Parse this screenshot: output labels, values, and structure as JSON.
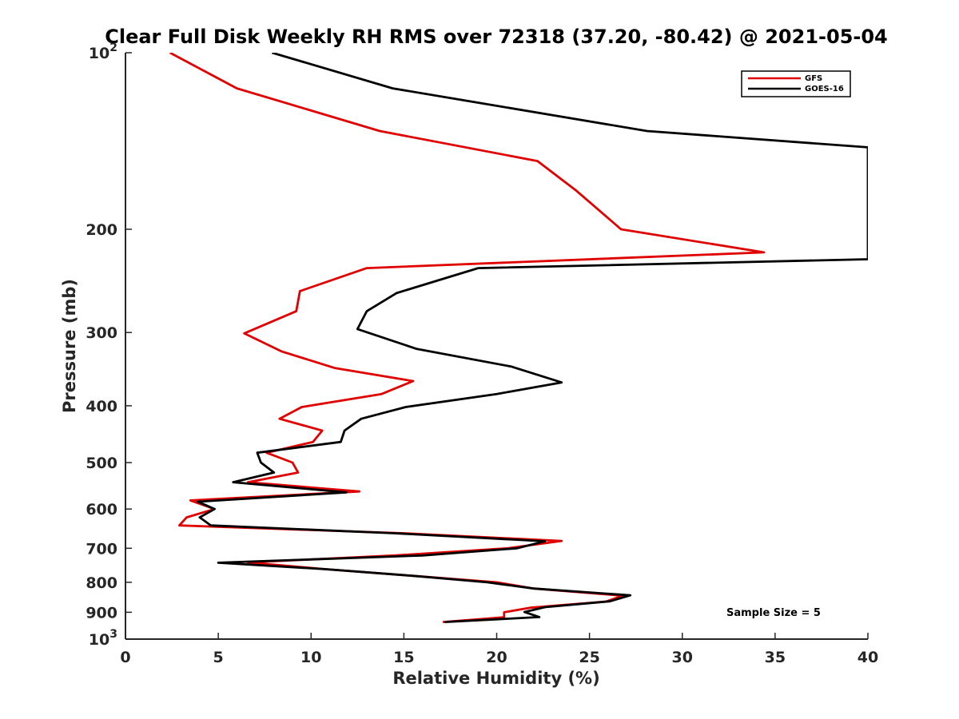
{
  "chart_data": {
    "type": "line",
    "title": "Clear Full Disk Weekly RH RMS over 72318 (37.20, -80.42) @ 2021-05-04",
    "xlabel": "Relative Humidity (%)",
    "ylabel": "Pressure (mb)",
    "xlim": [
      0,
      40
    ],
    "ylim": [
      100,
      1000
    ],
    "y_scale": "log",
    "y_reversed": true,
    "grid": false,
    "legend_position": "top-right",
    "x_ticks": [
      "0",
      "5",
      "10",
      "15",
      "20",
      "25",
      "30",
      "35",
      "40"
    ],
    "y_ticks": [
      {
        "value": 100,
        "base": "10",
        "exp": "2"
      },
      {
        "value": 200,
        "label": "200"
      },
      {
        "value": 300,
        "label": "300"
      },
      {
        "value": 400,
        "label": "400"
      },
      {
        "value": 500,
        "label": "500"
      },
      {
        "value": 600,
        "label": "600"
      },
      {
        "value": 700,
        "label": "700"
      },
      {
        "value": 800,
        "label": "800"
      },
      {
        "value": 900,
        "label": "900"
      },
      {
        "value": 1000,
        "base": "10",
        "exp": "3"
      }
    ],
    "annotation": "Sample Size = 5",
    "series": [
      {
        "name": "GFS",
        "color": "#e00000",
        "points": [
          [
            2.4,
            100
          ],
          [
            6.0,
            115
          ],
          [
            13.7,
            136
          ],
          [
            22.2,
            153
          ],
          [
            24.3,
            172
          ],
          [
            26.7,
            200
          ],
          [
            34.4,
            219
          ],
          [
            13.0,
            233
          ],
          [
            9.4,
            255
          ],
          [
            9.2,
            276
          ],
          [
            6.4,
            301
          ],
          [
            8.4,
            323
          ],
          [
            11.3,
            345
          ],
          [
            15.5,
            363
          ],
          [
            13.8,
            382
          ],
          [
            9.5,
            402
          ],
          [
            8.3,
            421
          ],
          [
            10.6,
            441
          ],
          [
            10.1,
            461
          ],
          [
            7.6,
            481
          ],
          [
            9.0,
            500
          ],
          [
            9.3,
            520
          ],
          [
            6.6,
            540
          ],
          [
            12.6,
            560
          ],
          [
            3.5,
            580
          ],
          [
            4.8,
            600
          ],
          [
            3.3,
            620
          ],
          [
            2.9,
            640
          ],
          [
            15.0,
            660
          ],
          [
            23.5,
            680
          ],
          [
            20.6,
            700
          ],
          [
            14.5,
            720
          ],
          [
            6.6,
            740
          ],
          [
            10.8,
            760
          ],
          [
            15.5,
            780
          ],
          [
            20.0,
            800
          ],
          [
            22.0,
            820
          ],
          [
            26.8,
            843
          ],
          [
            25.9,
            863
          ],
          [
            21.8,
            884
          ],
          [
            20.4,
            900
          ],
          [
            20.4,
            918
          ],
          [
            17.1,
            935
          ]
        ]
      },
      {
        "name": "GOES-16",
        "color": "#000000",
        "points": [
          [
            7.9,
            100
          ],
          [
            14.4,
            115
          ],
          [
            28.1,
            136
          ],
          [
            40.0,
            145
          ],
          [
            40.0,
            225
          ],
          [
            19.0,
            233
          ],
          [
            14.6,
            257
          ],
          [
            13.0,
            276
          ],
          [
            12.5,
            296
          ],
          [
            15.7,
            320
          ],
          [
            20.8,
            343
          ],
          [
            23.5,
            365
          ],
          [
            20.0,
            382
          ],
          [
            15.1,
            402
          ],
          [
            12.7,
            421
          ],
          [
            11.8,
            441
          ],
          [
            11.6,
            461
          ],
          [
            7.1,
            481
          ],
          [
            7.3,
            500
          ],
          [
            8.0,
            520
          ],
          [
            5.8,
            540
          ],
          [
            11.9,
            562
          ],
          [
            3.9,
            583
          ],
          [
            4.8,
            600
          ],
          [
            4.0,
            620
          ],
          [
            4.6,
            640
          ],
          [
            14.5,
            660
          ],
          [
            22.6,
            681
          ],
          [
            21.1,
            700
          ],
          [
            16.0,
            720
          ],
          [
            5.0,
            741
          ],
          [
            10.8,
            760
          ],
          [
            15.5,
            780
          ],
          [
            19.5,
            800
          ],
          [
            22.0,
            820
          ],
          [
            27.2,
            842
          ],
          [
            26.1,
            862
          ],
          [
            22.6,
            882
          ],
          [
            21.5,
            899
          ],
          [
            22.3,
            917
          ],
          [
            17.2,
            935
          ]
        ]
      }
    ]
  }
}
